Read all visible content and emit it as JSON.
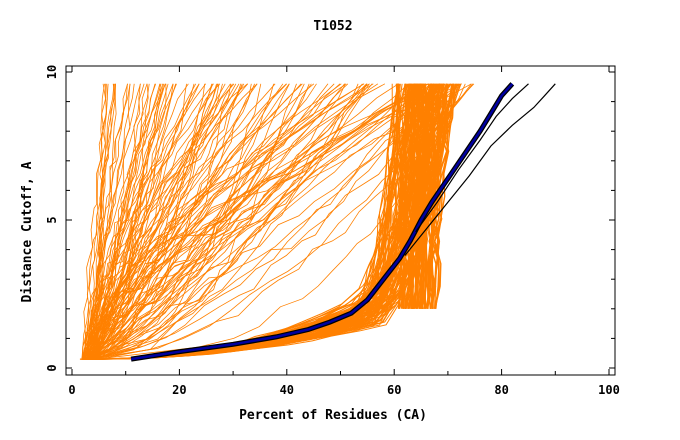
{
  "chart_data": {
    "type": "line",
    "title": "T1052",
    "xlabel": "Percent of Residues (CA)",
    "ylabel": "Distance Cutoff, A",
    "xlim": [
      0,
      100
    ],
    "ylim": [
      0,
      10
    ],
    "x_ticks": [
      "0",
      "20",
      "40",
      "60",
      "80",
      "100"
    ],
    "y_ticks": [
      "0",
      "5",
      "10"
    ],
    "grid": false,
    "legend": "none",
    "colors": {
      "background_series": "#ff8000",
      "highlight_main": "#0000a0",
      "highlight_outline": "#000000",
      "reference": "#000000"
    },
    "series": [
      {
        "role": "highlighted model",
        "x": [
          11,
          20,
          30,
          38,
          44,
          48,
          52,
          55,
          58,
          61,
          63,
          65,
          67,
          70,
          73,
          76,
          78,
          80,
          82
        ],
        "y": [
          0.3,
          0.55,
          0.8,
          1.05,
          1.3,
          1.55,
          1.85,
          2.3,
          3.0,
          3.7,
          4.3,
          5.0,
          5.6,
          6.4,
          7.2,
          8.0,
          8.6,
          9.2,
          9.6
        ]
      },
      {
        "role": "reference model",
        "x": [
          62,
          66,
          70,
          74,
          78,
          82,
          86,
          88,
          90
        ],
        "y": [
          3.8,
          4.7,
          5.6,
          6.5,
          7.5,
          8.2,
          8.8,
          9.2,
          9.6
        ]
      },
      {
        "role": "reference model",
        "x": [
          64,
          68,
          72,
          76,
          79,
          82,
          85
        ],
        "y": [
          4.6,
          5.6,
          6.7,
          7.7,
          8.5,
          9.1,
          9.6
        ]
      }
    ]
  }
}
